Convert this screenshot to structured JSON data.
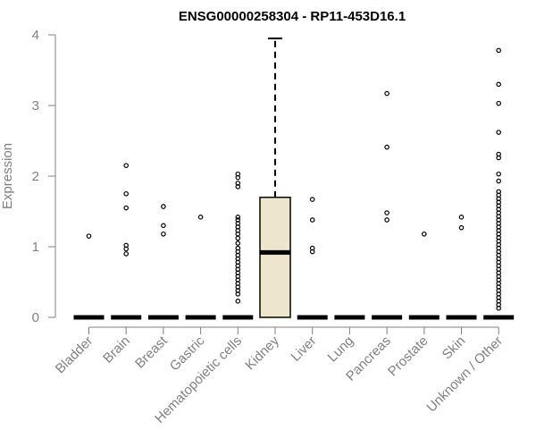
{
  "chart_data": {
    "type": "boxplot",
    "title": "ENSG00000258304 - RP11-453D16.1",
    "xlabel": "",
    "ylabel": "Expression",
    "ylim": [
      0,
      4
    ],
    "yticks": [
      "0",
      "1",
      "2",
      "3",
      "4"
    ],
    "categories": [
      "Bladder",
      "Brain",
      "Breast",
      "Gastric",
      "Hematopoietic cells",
      "Kidney",
      "Liver",
      "Lung",
      "Pancreas",
      "Prostate",
      "Skin",
      "Unknown / Other"
    ],
    "boxes": [
      {
        "category": "Bladder",
        "q1": 0,
        "median": 0,
        "q3": 0,
        "whisker_low": 0,
        "whisker_high": 0,
        "outliers": [
          1.15
        ]
      },
      {
        "category": "Brain",
        "q1": 0,
        "median": 0,
        "q3": 0,
        "whisker_low": 0,
        "whisker_high": 0,
        "outliers": [
          2.15,
          1.75,
          1.55,
          1.02,
          0.97,
          0.9
        ]
      },
      {
        "category": "Breast",
        "q1": 0,
        "median": 0,
        "q3": 0,
        "whisker_low": 0,
        "whisker_high": 0,
        "outliers": [
          1.57,
          1.3,
          1.18
        ]
      },
      {
        "category": "Gastric",
        "q1": 0,
        "median": 0,
        "q3": 0,
        "whisker_low": 0,
        "whisker_high": 0,
        "outliers": [
          1.42
        ]
      },
      {
        "category": "Hematopoietic cells",
        "q1": 0,
        "median": 0,
        "q3": 0,
        "whisker_low": 0,
        "whisker_high": 0,
        "outliers": [
          2.03,
          1.98,
          1.9,
          1.85,
          1.42,
          1.38,
          1.33,
          1.28,
          1.23,
          1.18,
          1.12,
          1.05,
          0.98,
          0.93,
          0.88,
          0.83,
          0.78,
          0.73,
          0.68,
          0.63,
          0.58,
          0.53,
          0.48,
          0.43,
          0.38,
          0.33,
          0.23
        ]
      },
      {
        "category": "Kidney",
        "q1": 0,
        "median": 0.92,
        "q3": 1.7,
        "whisker_low": 0,
        "whisker_high": 3.95,
        "outliers": []
      },
      {
        "category": "Liver",
        "q1": 0,
        "median": 0,
        "q3": 0,
        "whisker_low": 0,
        "whisker_high": 0,
        "outliers": [
          1.67,
          1.38,
          0.98,
          0.93
        ]
      },
      {
        "category": "Lung",
        "q1": 0,
        "median": 0,
        "q3": 0,
        "whisker_low": 0,
        "whisker_high": 0,
        "outliers": []
      },
      {
        "category": "Pancreas",
        "q1": 0,
        "median": 0,
        "q3": 0,
        "whisker_low": 0,
        "whisker_high": 0,
        "outliers": [
          3.17,
          2.41,
          1.48,
          1.38
        ]
      },
      {
        "category": "Prostate",
        "q1": 0,
        "median": 0,
        "q3": 0,
        "whisker_low": 0,
        "whisker_high": 0,
        "outliers": [
          1.18
        ]
      },
      {
        "category": "Skin",
        "q1": 0,
        "median": 0,
        "q3": 0,
        "whisker_low": 0,
        "whisker_high": 0,
        "outliers": [
          1.42,
          1.27
        ]
      },
      {
        "category": "Unknown / Other",
        "q1": 0,
        "median": 0,
        "q3": 0,
        "whisker_low": 0,
        "whisker_high": 0,
        "outliers": [
          3.78,
          3.3,
          3.03,
          2.62,
          2.31,
          2.26,
          2.03,
          1.93,
          1.78,
          1.73,
          1.68,
          1.63,
          1.58,
          1.53,
          1.48,
          1.43,
          1.38,
          1.33,
          1.28,
          1.23,
          1.18,
          1.13,
          1.08,
          1.03,
          0.98,
          0.93,
          0.88,
          0.83,
          0.78,
          0.73,
          0.68,
          0.63,
          0.58,
          0.53,
          0.48,
          0.43,
          0.38,
          0.33,
          0.28,
          0.23,
          0.18,
          0.13
        ]
      }
    ],
    "colors": {
      "box_fill": "#ede6cc",
      "highlight_category": "Kidney",
      "axis": "#808080",
      "marks": "#000000"
    },
    "grid": false,
    "legend": "none"
  }
}
